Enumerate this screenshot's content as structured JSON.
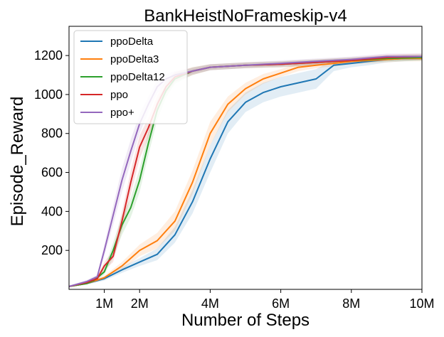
{
  "chart_data": {
    "type": "line",
    "title": "BankHeistNoFrameskip-v4",
    "xlabel": "Number of Steps",
    "ylabel": "Episode_Reward",
    "xlim": [
      0,
      10000000
    ],
    "ylim": [
      0,
      1350
    ],
    "x_ticks": [
      {
        "value": 1000000,
        "label": "1M"
      },
      {
        "value": 2000000,
        "label": "2M"
      },
      {
        "value": 4000000,
        "label": "4M"
      },
      {
        "value": 6000000,
        "label": "6M"
      },
      {
        "value": 8000000,
        "label": "8M"
      },
      {
        "value": 10000000,
        "label": "10M"
      }
    ],
    "y_ticks": [
      {
        "value": 200,
        "label": "200"
      },
      {
        "value": 400,
        "label": "400"
      },
      {
        "value": 600,
        "label": "600"
      },
      {
        "value": 800,
        "label": "800"
      },
      {
        "value": 1000,
        "label": "1000"
      },
      {
        "value": 1200,
        "label": "1200"
      }
    ],
    "grid": false,
    "legend_position": "top-left",
    "series": [
      {
        "name": "ppoDelta",
        "color": "#1f77b4",
        "x": [
          0,
          500000,
          1000000,
          1500000,
          2000000,
          2500000,
          3000000,
          3500000,
          4000000,
          4500000,
          5000000,
          5500000,
          6000000,
          6500000,
          7000000,
          7500000,
          8000000,
          8500000,
          9000000,
          9500000,
          10000000
        ],
        "y": [
          15,
          30,
          55,
          100,
          140,
          180,
          280,
          450,
          670,
          860,
          960,
          1010,
          1040,
          1060,
          1080,
          1150,
          1160,
          1170,
          1180,
          1185,
          1185
        ],
        "band_lower": [
          12,
          25,
          45,
          85,
          120,
          150,
          240,
          390,
          600,
          800,
          910,
          960,
          990,
          1010,
          1030,
          1120,
          1140,
          1150,
          1165,
          1170,
          1175
        ],
        "band_upper": [
          18,
          35,
          65,
          115,
          160,
          210,
          320,
          510,
          740,
          920,
          1010,
          1060,
          1090,
          1110,
          1130,
          1180,
          1180,
          1190,
          1195,
          1200,
          1200
        ]
      },
      {
        "name": "ppoDelta3",
        "color": "#ff7f0e",
        "x": [
          0,
          500000,
          1000000,
          1500000,
          2000000,
          2500000,
          3000000,
          3500000,
          4000000,
          4500000,
          5000000,
          5500000,
          6000000,
          6500000,
          7000000,
          7500000,
          8000000,
          8500000,
          9000000,
          9500000,
          10000000
        ],
        "y": [
          15,
          30,
          60,
          120,
          200,
          250,
          350,
          550,
          800,
          950,
          1030,
          1080,
          1110,
          1140,
          1150,
          1160,
          1170,
          1175,
          1180,
          1185,
          1185
        ],
        "band_lower": [
          12,
          25,
          50,
          100,
          170,
          210,
          300,
          490,
          740,
          910,
          1000,
          1055,
          1090,
          1120,
          1135,
          1145,
          1155,
          1160,
          1165,
          1170,
          1170
        ],
        "band_upper": [
          18,
          35,
          70,
          140,
          230,
          290,
          400,
          610,
          860,
          990,
          1060,
          1105,
          1130,
          1160,
          1165,
          1175,
          1185,
          1190,
          1195,
          1200,
          1200
        ]
      },
      {
        "name": "ppoDelta12",
        "color": "#2ca02c",
        "x": [
          0,
          500000,
          700000,
          1000000,
          1250000,
          1500000,
          1750000,
          2000000,
          2250000,
          2500000,
          2750000,
          3000000,
          3500000,
          4000000,
          5000000,
          6000000,
          7000000,
          8000000,
          9000000,
          10000000
        ],
        "y": [
          15,
          30,
          45,
          90,
          200,
          330,
          420,
          560,
          750,
          920,
          1020,
          1080,
          1120,
          1140,
          1150,
          1155,
          1165,
          1175,
          1185,
          1190
        ],
        "band_lower": [
          12,
          25,
          38,
          75,
          160,
          280,
          370,
          500,
          690,
          870,
          985,
          1055,
          1100,
          1125,
          1135,
          1140,
          1150,
          1160,
          1170,
          1175
        ],
        "band_upper": [
          18,
          35,
          52,
          105,
          240,
          380,
          470,
          620,
          810,
          970,
          1055,
          1105,
          1140,
          1155,
          1165,
          1170,
          1180,
          1190,
          1200,
          1205
        ]
      },
      {
        "name": "ppo",
        "color": "#d62728",
        "x": [
          0,
          500000,
          800000,
          1000000,
          1250000,
          1500000,
          1750000,
          2000000,
          2250000,
          2500000,
          2750000,
          3000000,
          3500000,
          4000000,
          5000000,
          6000000,
          7000000,
          8000000,
          9000000,
          10000000
        ],
        "y": [
          15,
          35,
          55,
          120,
          170,
          350,
          550,
          730,
          830,
          950,
          1040,
          1090,
          1120,
          1140,
          1150,
          1155,
          1165,
          1175,
          1190,
          1195
        ],
        "band_lower": [
          12,
          28,
          45,
          100,
          140,
          300,
          490,
          670,
          780,
          905,
          1005,
          1065,
          1100,
          1125,
          1135,
          1140,
          1150,
          1160,
          1175,
          1180
        ],
        "band_upper": [
          18,
          42,
          65,
          140,
          200,
          400,
          610,
          790,
          880,
          995,
          1075,
          1115,
          1140,
          1155,
          1165,
          1170,
          1180,
          1190,
          1205,
          1210
        ]
      },
      {
        "name": "ppo+",
        "color": "#9467bd",
        "x": [
          0,
          500000,
          800000,
          1000000,
          1250000,
          1500000,
          1750000,
          2000000,
          2250000,
          2500000,
          2750000,
          3000000,
          3500000,
          4000000,
          5000000,
          6000000,
          7000000,
          8000000,
          9000000,
          10000000
        ],
        "y": [
          15,
          40,
          65,
          200,
          380,
          560,
          710,
          850,
          950,
          1040,
          1080,
          1100,
          1120,
          1140,
          1150,
          1160,
          1170,
          1180,
          1195,
          1195
        ],
        "band_lower": [
          12,
          32,
          55,
          170,
          330,
          500,
          650,
          800,
          910,
          1005,
          1055,
          1080,
          1105,
          1125,
          1135,
          1145,
          1155,
          1165,
          1180,
          1180
        ],
        "band_upper": [
          18,
          48,
          75,
          230,
          430,
          620,
          770,
          900,
          990,
          1075,
          1105,
          1120,
          1135,
          1155,
          1165,
          1175,
          1185,
          1195,
          1210,
          1210
        ]
      }
    ]
  }
}
